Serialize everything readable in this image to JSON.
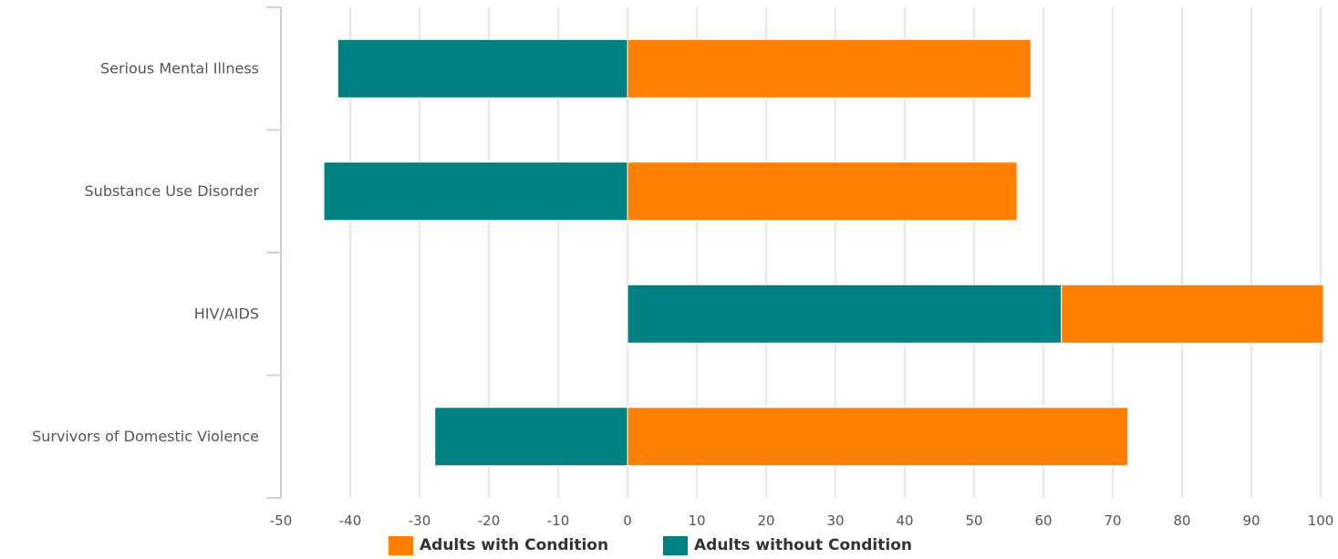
{
  "chart_data": {
    "type": "bar",
    "orientation": "horizontal",
    "stacking": "diverging",
    "categories": [
      "Serious Mental Illness",
      "Substance Use Disorder",
      "HIV/AIDS",
      "Survivors of Domestic Violence"
    ],
    "series": [
      {
        "name": "Adults without Condition",
        "color": "#008080",
        "segments": [
          [
            -41.8,
            0
          ],
          [
            -43.8,
            0
          ],
          [
            0,
            62.6
          ],
          [
            -27.8,
            0
          ]
        ]
      },
      {
        "name": "Adults with Condition",
        "color": "#FF8000",
        "segments": [
          [
            0,
            58.2
          ],
          [
            0,
            56.2
          ],
          [
            62.6,
            100.4
          ],
          [
            0,
            72.2
          ]
        ]
      }
    ],
    "xlim": [
      -50,
      100
    ],
    "xticks": [
      "-50",
      "-40",
      "-30",
      "-20",
      "-10",
      "0",
      "10",
      "20",
      "30",
      "40",
      "50",
      "60",
      "70",
      "80",
      "90",
      "100"
    ],
    "grid": true,
    "legend_position": "bottom"
  },
  "legend": {
    "items": [
      {
        "label": "Adults with Condition",
        "color": "#FF8000"
      },
      {
        "label": "Adults without Condition",
        "color": "#008080"
      }
    ]
  }
}
